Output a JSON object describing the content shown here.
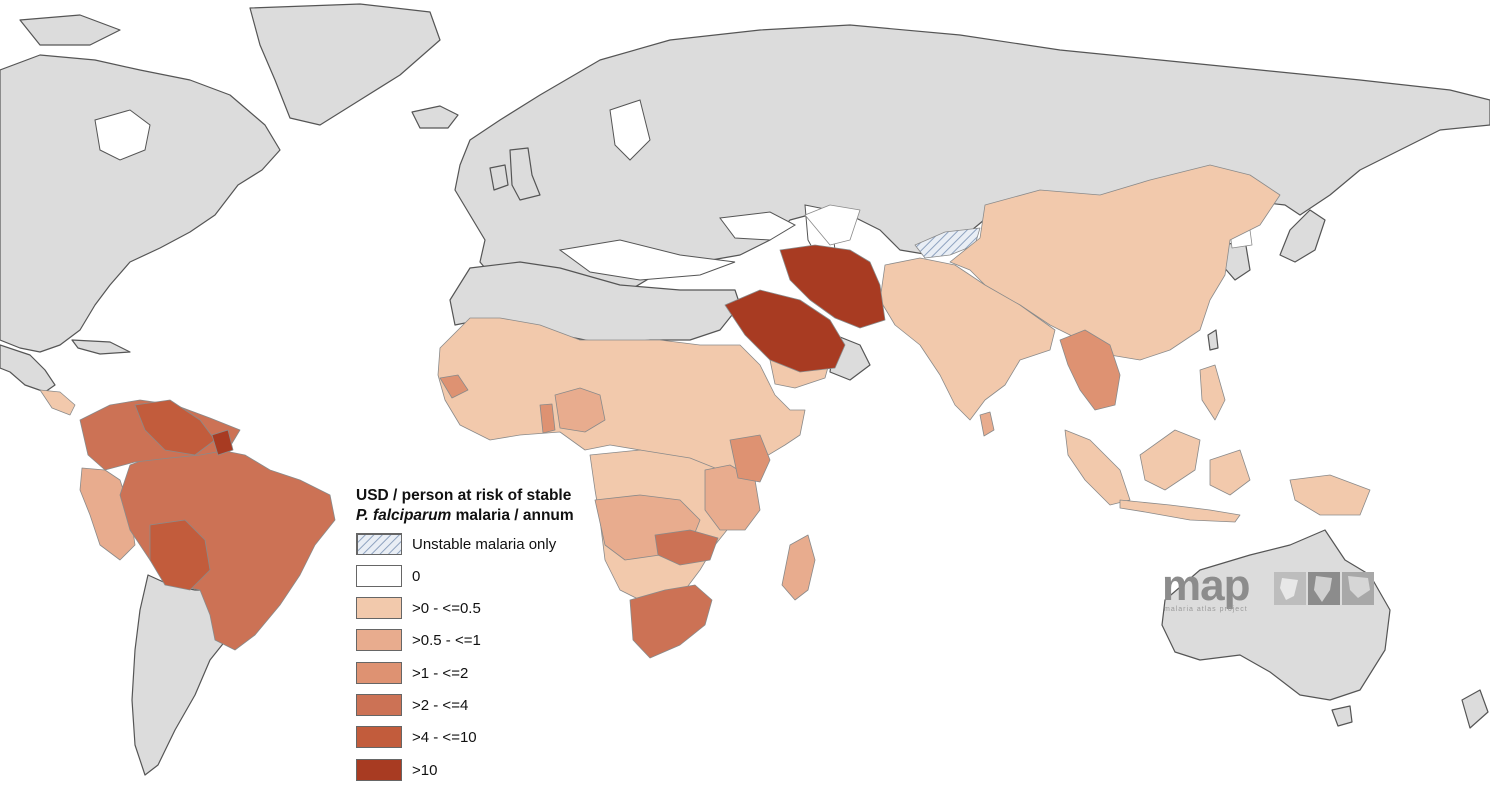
{
  "legend": {
    "title_line1": "USD / person at risk of stable",
    "title_line2_italic": "P. falciparum",
    "title_line2_rest": " malaria / annum",
    "items": [
      {
        "label": "Unstable malaria only",
        "color": "#c6d3e3",
        "pattern": "hatch"
      },
      {
        "label": "0",
        "color": "#ffffff"
      },
      {
        "label": ">0 - <=0.5",
        "color": "#f2c9ac"
      },
      {
        "label": ">0.5 - <=1",
        "color": "#e8ac8e"
      },
      {
        "label": ">1 - <=2",
        "color": "#de9272"
      },
      {
        "label": ">2 - <=4",
        "color": "#cc7255"
      },
      {
        "label": ">4 - <=10",
        "color": "#c25c3c"
      },
      {
        "label": ">10",
        "color": "#a83b22"
      }
    ]
  },
  "logo": {
    "text": "map",
    "subtitle": "malaria atlas project"
  },
  "colors": {
    "background": "#ffffff",
    "land_no_data": "#dcdcdc",
    "coastline": "#555555"
  }
}
